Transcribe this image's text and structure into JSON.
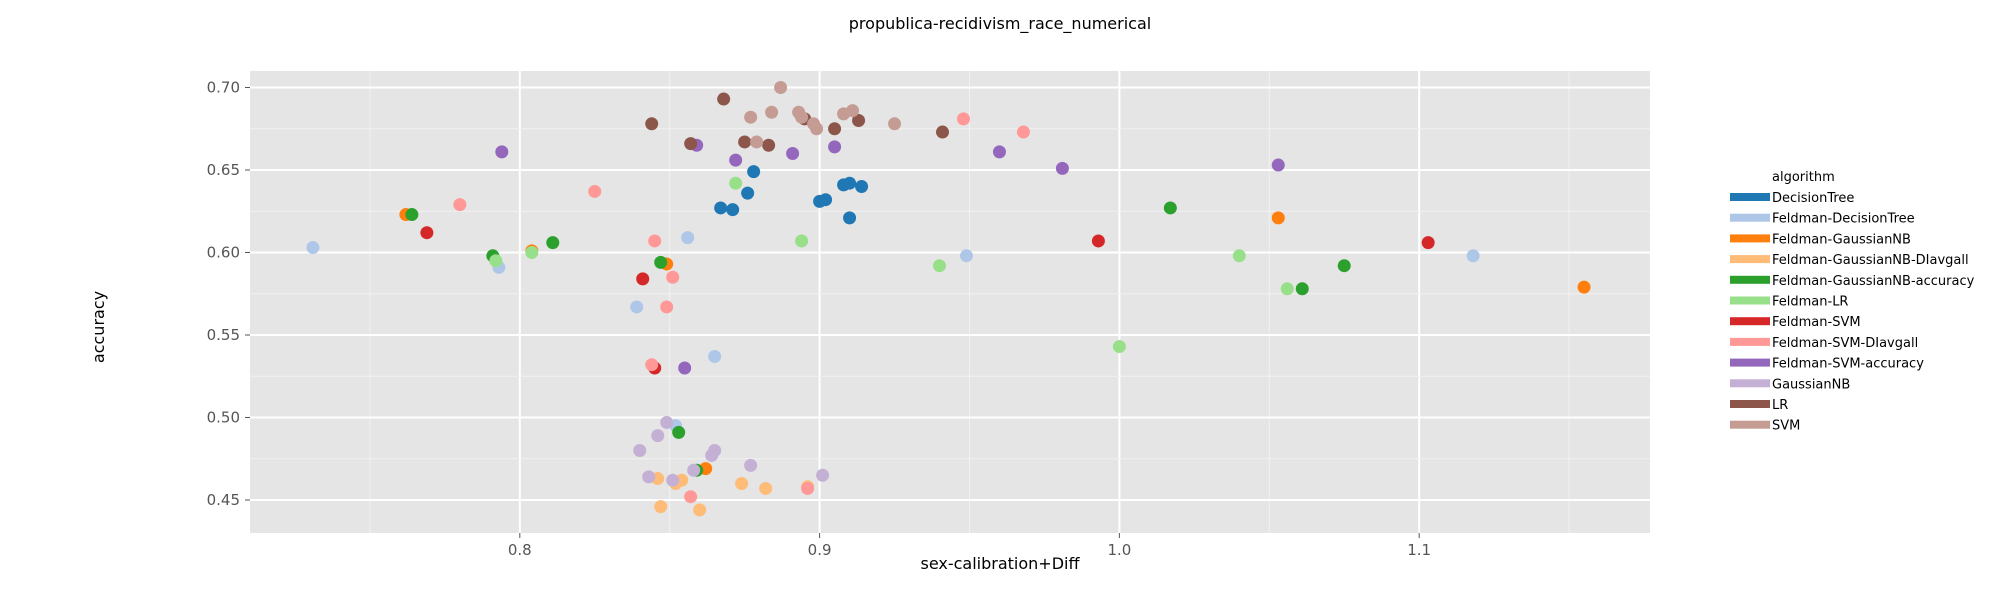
{
  "chart_data": {
    "type": "scatter",
    "title": "propublica-recidivism_race_numerical",
    "xlabel": "sex-calibration+Diff",
    "ylabel": "accuracy",
    "xlim": [
      0.71,
      1.177
    ],
    "ylim": [
      0.43,
      0.71
    ],
    "xticks": [
      0.8,
      0.9,
      1.0,
      1.1
    ],
    "xtick_labels": [
      "0.8",
      "0.9",
      "1.0",
      "1.1"
    ],
    "yticks": [
      0.45,
      0.5,
      0.55,
      0.6,
      0.65,
      0.7
    ],
    "ytick_labels": [
      "0.45",
      "0.50",
      "0.55",
      "0.60",
      "0.65",
      "0.70"
    ],
    "grid": true,
    "background": "#e5e5e5",
    "legend": {
      "title": "algorithm",
      "placement": "right"
    },
    "series": [
      {
        "name": "DecisionTree",
        "color": "#1f77b4",
        "points": [
          [
            0.867,
            0.627
          ],
          [
            0.871,
            0.626
          ],
          [
            0.876,
            0.636
          ],
          [
            0.878,
            0.649
          ],
          [
            0.9,
            0.631
          ],
          [
            0.902,
            0.632
          ],
          [
            0.908,
            0.641
          ],
          [
            0.91,
            0.642
          ],
          [
            0.914,
            0.64
          ],
          [
            0.91,
            0.621
          ]
        ]
      },
      {
        "name": "Feldman-DecisionTree",
        "color": "#aec7e8",
        "points": [
          [
            0.731,
            0.603
          ],
          [
            0.793,
            0.591
          ],
          [
            0.856,
            0.609
          ],
          [
            0.839,
            0.567
          ],
          [
            0.865,
            0.537
          ],
          [
            0.852,
            0.495
          ],
          [
            0.949,
            0.598
          ],
          [
            1.118,
            0.598
          ]
        ]
      },
      {
        "name": "Feldman-GaussianNB",
        "color": "#ff7f0e",
        "points": [
          [
            0.762,
            0.623
          ],
          [
            0.804,
            0.601
          ],
          [
            0.849,
            0.593
          ],
          [
            1.053,
            0.621
          ],
          [
            1.155,
            0.579
          ],
          [
            0.862,
            0.469
          ]
        ]
      },
      {
        "name": "Feldman-GaussianNB-DIavgall",
        "color": "#ffbb78",
        "points": [
          [
            0.846,
            0.463
          ],
          [
            0.847,
            0.446
          ],
          [
            0.852,
            0.46
          ],
          [
            0.854,
            0.462
          ],
          [
            0.86,
            0.444
          ],
          [
            0.874,
            0.46
          ],
          [
            0.882,
            0.457
          ],
          [
            0.896,
            0.458
          ]
        ]
      },
      {
        "name": "Feldman-GaussianNB-accuracy",
        "color": "#2ca02c",
        "points": [
          [
            0.764,
            0.623
          ],
          [
            0.791,
            0.598
          ],
          [
            0.811,
            0.606
          ],
          [
            0.847,
            0.594
          ],
          [
            0.853,
            0.491
          ],
          [
            0.859,
            0.468
          ],
          [
            1.017,
            0.627
          ],
          [
            1.061,
            0.578
          ],
          [
            1.075,
            0.592
          ]
        ]
      },
      {
        "name": "Feldman-LR",
        "color": "#98df8a",
        "points": [
          [
            0.792,
            0.595
          ],
          [
            0.804,
            0.6
          ],
          [
            0.872,
            0.642
          ],
          [
            0.894,
            0.607
          ],
          [
            0.94,
            0.592
          ],
          [
            1.0,
            0.543
          ],
          [
            1.04,
            0.598
          ],
          [
            1.056,
            0.578
          ]
        ]
      },
      {
        "name": "Feldman-SVM",
        "color": "#d62728",
        "points": [
          [
            0.769,
            0.612
          ],
          [
            0.841,
            0.584
          ],
          [
            0.845,
            0.53
          ],
          [
            0.993,
            0.607
          ],
          [
            1.103,
            0.606
          ]
        ]
      },
      {
        "name": "Feldman-SVM-DIavgall",
        "color": "#ff9896",
        "points": [
          [
            0.78,
            0.629
          ],
          [
            0.825,
            0.637
          ],
          [
            0.844,
            0.532
          ],
          [
            0.845,
            0.607
          ],
          [
            0.849,
            0.567
          ],
          [
            0.851,
            0.585
          ],
          [
            0.857,
            0.452
          ],
          [
            0.896,
            0.457
          ],
          [
            0.948,
            0.681
          ],
          [
            0.968,
            0.673
          ]
        ]
      },
      {
        "name": "Feldman-SVM-accuracy",
        "color": "#9467bd",
        "points": [
          [
            0.794,
            0.661
          ],
          [
            0.855,
            0.53
          ],
          [
            0.859,
            0.665
          ],
          [
            0.872,
            0.656
          ],
          [
            0.891,
            0.66
          ],
          [
            0.905,
            0.664
          ],
          [
            0.96,
            0.661
          ],
          [
            0.981,
            0.651
          ],
          [
            1.053,
            0.653
          ]
        ]
      },
      {
        "name": "GaussianNB",
        "color": "#c5b0d5",
        "points": [
          [
            0.84,
            0.48
          ],
          [
            0.843,
            0.464
          ],
          [
            0.846,
            0.489
          ],
          [
            0.849,
            0.497
          ],
          [
            0.851,
            0.462
          ],
          [
            0.858,
            0.468
          ],
          [
            0.864,
            0.477
          ],
          [
            0.865,
            0.48
          ],
          [
            0.877,
            0.471
          ],
          [
            0.901,
            0.465
          ]
        ]
      },
      {
        "name": "LR",
        "color": "#8c564b",
        "points": [
          [
            0.844,
            0.678
          ],
          [
            0.857,
            0.666
          ],
          [
            0.868,
            0.693
          ],
          [
            0.875,
            0.667
          ],
          [
            0.883,
            0.665
          ],
          [
            0.895,
            0.681
          ],
          [
            0.905,
            0.675
          ],
          [
            0.913,
            0.68
          ],
          [
            0.941,
            0.673
          ]
        ]
      },
      {
        "name": "SVM",
        "color": "#c49c94",
        "points": [
          [
            0.877,
            0.682
          ],
          [
            0.879,
            0.667
          ],
          [
            0.884,
            0.685
          ],
          [
            0.887,
            0.7
          ],
          [
            0.893,
            0.685
          ],
          [
            0.894,
            0.682
          ],
          [
            0.898,
            0.678
          ],
          [
            0.899,
            0.675
          ],
          [
            0.908,
            0.684
          ],
          [
            0.911,
            0.686
          ],
          [
            0.925,
            0.678
          ]
        ]
      }
    ]
  }
}
